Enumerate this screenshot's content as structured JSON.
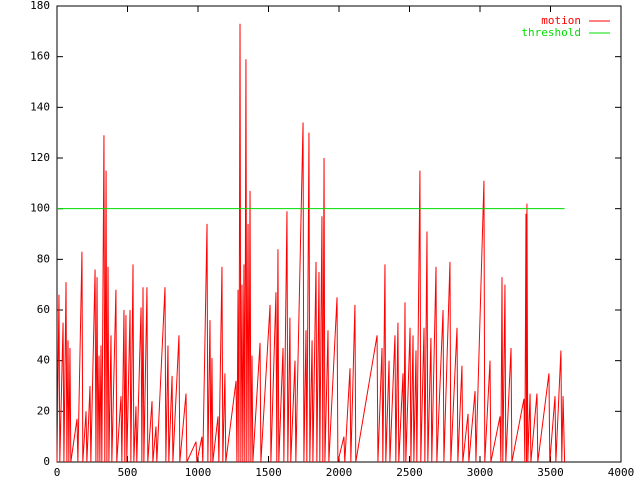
{
  "chart_data": {
    "type": "line",
    "xlim": [
      0,
      4000
    ],
    "xticks": [
      0,
      500,
      1000,
      1500,
      2000,
      2500,
      3000,
      3500,
      4000
    ],
    "ylim": [
      0,
      180
    ],
    "yticks": [
      0,
      20,
      40,
      60,
      80,
      100,
      120,
      140,
      160,
      180
    ],
    "legend": "top-right",
    "series": [
      {
        "name": "motion",
        "color": "#ff0000",
        "x": [
          0,
          14,
          20,
          43,
          49,
          64,
          70,
          78,
          84,
          92,
          98,
          142,
          148,
          177,
          183,
          206,
          212,
          234,
          240,
          270,
          276,
          284,
          290,
          298,
          304,
          312,
          318,
          333,
          339,
          348,
          354,
          362,
          368,
          383,
          389,
          418,
          424,
          454,
          460,
          475,
          481,
          489,
          495,
          518,
          524,
          539,
          545,
          560,
          566,
          596,
          602,
          610,
          616,
          638,
          644,
          674,
          680,
          702,
          708,
          766,
          772,
          787,
          793,
          816,
          822,
          865,
          871,
          915,
          921,
          986,
          992,
          1028,
          1034,
          1064,
          1070,
          1085,
          1091,
          1099,
          1105,
          1142,
          1148,
          1170,
          1176,
          1191,
          1197,
          1270,
          1276,
          1284,
          1290,
          1298,
          1304,
          1312,
          1318,
          1326,
          1332,
          1340,
          1346,
          1355,
          1361,
          1369,
          1375,
          1383,
          1389,
          1440,
          1446,
          1511,
          1517,
          1553,
          1559,
          1567,
          1573,
          1603,
          1609,
          1631,
          1637,
          1652,
          1658,
          1688,
          1694,
          1745,
          1751,
          1766,
          1772,
          1787,
          1793,
          1809,
          1815,
          1837,
          1843,
          1858,
          1864,
          1879,
          1885,
          1894,
          1900,
          1922,
          1928,
          1986,
          1992,
          2035,
          2041,
          2078,
          2084,
          2113,
          2119,
          2270,
          2276,
          2305,
          2311,
          2326,
          2332,
          2355,
          2361,
          2397,
          2403,
          2418,
          2424,
          2454,
          2460,
          2468,
          2474,
          2504,
          2510,
          2525,
          2531,
          2546,
          2552,
          2574,
          2580,
          2603,
          2609,
          2624,
          2630,
          2652,
          2658,
          2688,
          2694,
          2738,
          2744,
          2787,
          2793,
          2837,
          2843,
          2872,
          2878,
          2915,
          2921,
          2965,
          2971,
          3028,
          3034,
          3071,
          3077,
          3142,
          3148,
          3156,
          3162,
          3177,
          3183,
          3220,
          3226,
          3312,
          3318,
          3326,
          3330,
          3333,
          3339,
          3355,
          3361,
          3404,
          3410,
          3489,
          3495,
          3532,
          3538,
          3574,
          3580,
          3589,
          3600
        ],
        "values": [
          0,
          66,
          0,
          55,
          0,
          71,
          0,
          48,
          0,
          45,
          0,
          17,
          0,
          83,
          0,
          20,
          0,
          30,
          0,
          76,
          0,
          73,
          0,
          42,
          0,
          46,
          0,
          129,
          0,
          115,
          0,
          77,
          0,
          50,
          0,
          68,
          0,
          26,
          0,
          60,
          0,
          58,
          0,
          60,
          0,
          78,
          0,
          22,
          0,
          61,
          0,
          69,
          0,
          69,
          0,
          24,
          0,
          14,
          0,
          69,
          0,
          46,
          0,
          34,
          0,
          50,
          0,
          27,
          0,
          8,
          0,
          10,
          0,
          94,
          0,
          56,
          0,
          41,
          0,
          18,
          0,
          77,
          0,
          35,
          0,
          32,
          0,
          68,
          0,
          173,
          0,
          70,
          0,
          78,
          0,
          159,
          0,
          94,
          0,
          107,
          0,
          42,
          0,
          47,
          0,
          62,
          0,
          67,
          0,
          84,
          0,
          45,
          0,
          99,
          0,
          57,
          0,
          40,
          0,
          134,
          0,
          52,
          0,
          130,
          0,
          48,
          0,
          79,
          0,
          75,
          0,
          97,
          0,
          120,
          0,
          52,
          0,
          65,
          0,
          10,
          0,
          37,
          0,
          62,
          0,
          50,
          0,
          45,
          0,
          78,
          0,
          40,
          0,
          50,
          0,
          55,
          0,
          35,
          0,
          63,
          0,
          53,
          0,
          50,
          0,
          44,
          0,
          115,
          0,
          53,
          0,
          91,
          0,
          49,
          0,
          77,
          0,
          60,
          0,
          79,
          0,
          53,
          0,
          38,
          0,
          19,
          0,
          28,
          0,
          111,
          0,
          40,
          0,
          18,
          0,
          73,
          0,
          70,
          0,
          45,
          0,
          25,
          0,
          98,
          0,
          102,
          0,
          27,
          0,
          27,
          0,
          35,
          0,
          26,
          0,
          44,
          0,
          26,
          0
        ]
      },
      {
        "name": "threshold",
        "color": "#00dd00",
        "x": [
          0,
          3600
        ],
        "values": [
          100,
          100
        ]
      }
    ]
  }
}
